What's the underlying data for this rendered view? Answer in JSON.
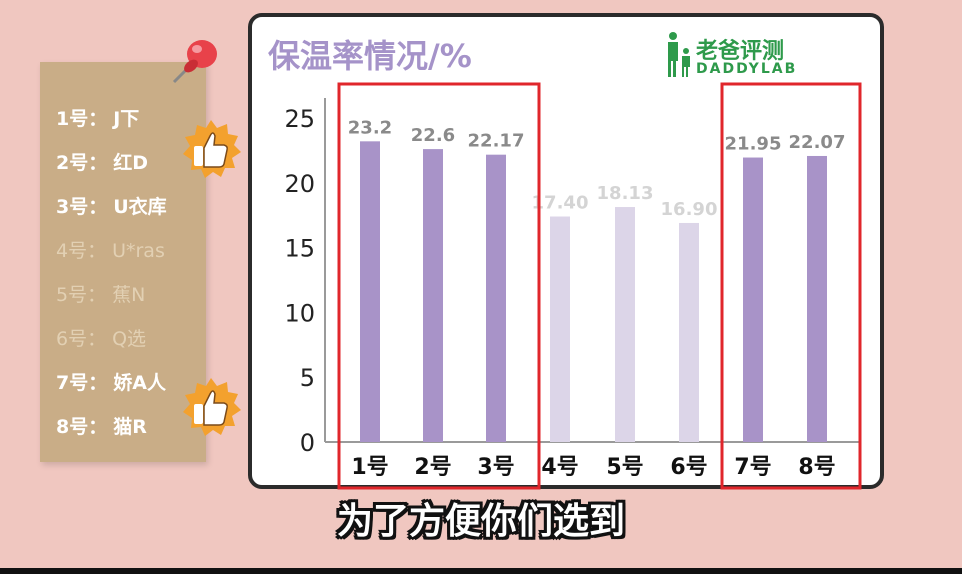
{
  "legend_card": {
    "items": [
      {
        "label": "1号：",
        "brand": "J下",
        "highlight": true
      },
      {
        "label": "2号：",
        "brand": "红D",
        "highlight": true
      },
      {
        "label": "3号：",
        "brand": "U衣库",
        "highlight": true
      },
      {
        "label": "4号：",
        "brand": "U*ras",
        "highlight": false
      },
      {
        "label": "5号：",
        "brand": "蕉N",
        "highlight": false
      },
      {
        "label": "6号：",
        "brand": "Q选",
        "highlight": false
      },
      {
        "label": "7号：",
        "brand": "娇A人",
        "highlight": true
      },
      {
        "label": "8号：",
        "brand": "猫R",
        "highlight": true
      }
    ]
  },
  "logo": {
    "cn": "老爸评测",
    "en": "DADDYLAB"
  },
  "subtitle": "为了方便你们选到",
  "colors": {
    "bar_highlight": "#a893c8",
    "bar_dim": "#dcd5e8",
    "label_highlight": "#8a8a8a",
    "label_dim": "#d4d4d4",
    "box": "#e0262b",
    "title": "#a593c9"
  },
  "chart_data": {
    "type": "bar",
    "title": "保温率情况/%",
    "categories": [
      "1号",
      "2号",
      "3号",
      "4号",
      "5号",
      "6号",
      "7号",
      "8号"
    ],
    "values": [
      23.2,
      22.6,
      22.17,
      17.4,
      18.13,
      16.9,
      21.95,
      22.07
    ],
    "value_labels": [
      "23.2",
      "22.6",
      "22.17",
      "17.40",
      "18.13",
      "16.90",
      "21.95",
      "22.07"
    ],
    "highlighted": [
      true,
      true,
      true,
      false,
      false,
      false,
      true,
      true
    ],
    "yticks": [
      "0",
      "5",
      "10",
      "15",
      "20",
      "25"
    ],
    "ylim": [
      0,
      25
    ],
    "highlight_groups": [
      [
        0,
        2
      ],
      [
        6,
        7
      ]
    ],
    "xlabel": "",
    "ylabel": "",
    "grid": false
  }
}
